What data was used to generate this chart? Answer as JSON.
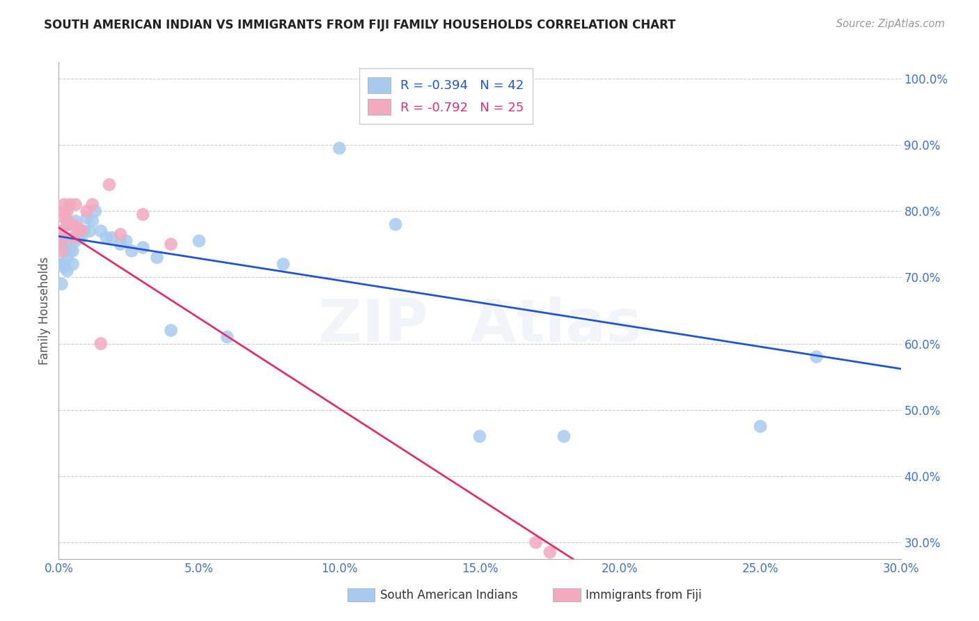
{
  "title": "SOUTH AMERICAN INDIAN VS IMMIGRANTS FROM FIJI FAMILY HOUSEHOLDS CORRELATION CHART",
  "source": "Source: ZipAtlas.com",
  "ylabel": "Family Households",
  "xmin": 0.0,
  "xmax": 0.3,
  "ymin": 0.275,
  "ymax": 1.025,
  "xtick_vals": [
    0.0,
    0.05,
    0.1,
    0.15,
    0.2,
    0.25,
    0.3
  ],
  "ytick_vals": [
    0.3,
    0.4,
    0.5,
    0.6,
    0.7,
    0.8,
    0.9,
    1.0
  ],
  "blue_R": -0.394,
  "blue_N": 42,
  "pink_R": -0.792,
  "pink_N": 25,
  "blue_dot_color": "#A8CAEE",
  "pink_dot_color": "#F2AABF",
  "blue_line_color": "#2255CC",
  "pink_line_color": "#E0306A",
  "legend_label_blue": "South American Indians",
  "legend_label_pink": "Immigrants from Fiji",
  "watermark": "ZIPAtlas",
  "title_color": "#222222",
  "source_color": "#999999",
  "axis_tick_color": "#4472C4",
  "ylabel_color": "#555555",
  "grid_color": "#CCCCCC",
  "blue_x": [
    0.001,
    0.001,
    0.001,
    0.001,
    0.002,
    0.002,
    0.002,
    0.003,
    0.003,
    0.003,
    0.004,
    0.004,
    0.005,
    0.005,
    0.006,
    0.006,
    0.007,
    0.007,
    0.008,
    0.009,
    0.01,
    0.011,
    0.012,
    0.013,
    0.015,
    0.017,
    0.019,
    0.022,
    0.024,
    0.026,
    0.03,
    0.035,
    0.04,
    0.05,
    0.06,
    0.08,
    0.1,
    0.12,
    0.15,
    0.18,
    0.25,
    0.27
  ],
  "blue_y": [
    0.72,
    0.69,
    0.75,
    0.76,
    0.74,
    0.72,
    0.715,
    0.755,
    0.73,
    0.71,
    0.78,
    0.74,
    0.72,
    0.74,
    0.785,
    0.755,
    0.765,
    0.76,
    0.76,
    0.77,
    0.79,
    0.77,
    0.785,
    0.8,
    0.77,
    0.76,
    0.76,
    0.75,
    0.755,
    0.74,
    0.745,
    0.73,
    0.62,
    0.755,
    0.61,
    0.72,
    0.895,
    0.78,
    0.46,
    0.46,
    0.475,
    0.58
  ],
  "pink_x": [
    0.001,
    0.001,
    0.001,
    0.002,
    0.002,
    0.002,
    0.003,
    0.003,
    0.003,
    0.004,
    0.004,
    0.005,
    0.005,
    0.006,
    0.007,
    0.008,
    0.01,
    0.012,
    0.015,
    0.018,
    0.022,
    0.03,
    0.04,
    0.17,
    0.175
  ],
  "pink_y": [
    0.755,
    0.74,
    0.77,
    0.79,
    0.81,
    0.8,
    0.78,
    0.8,
    0.785,
    0.78,
    0.81,
    0.76,
    0.78,
    0.81,
    0.775,
    0.77,
    0.8,
    0.81,
    0.6,
    0.84,
    0.765,
    0.795,
    0.75,
    0.3,
    0.285
  ],
  "blue_trend_x0": 0.0,
  "blue_trend_x1": 0.3,
  "blue_trend_y0": 0.762,
  "blue_trend_y1": 0.562,
  "pink_trend_x0": 0.0,
  "pink_trend_x1": 0.185,
  "pink_trend_y0": 0.775,
  "pink_trend_y1": 0.27
}
